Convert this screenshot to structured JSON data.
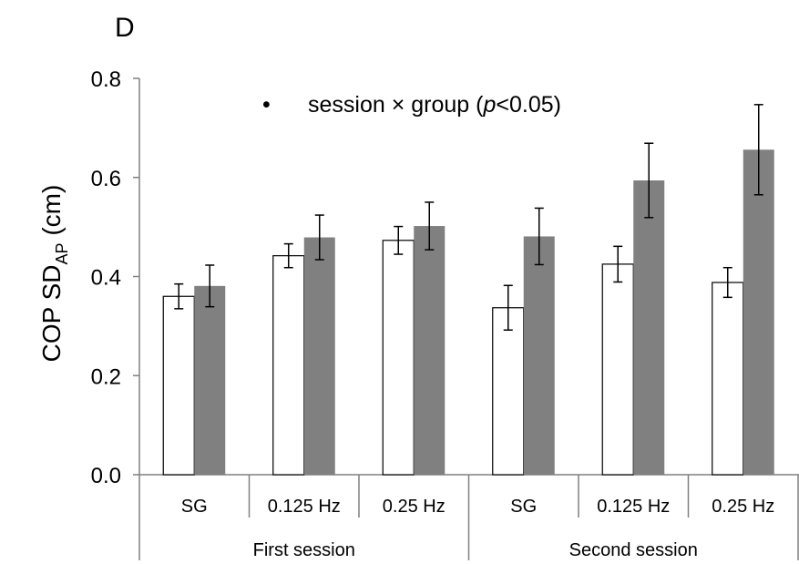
{
  "panel_label": "D",
  "legend": {
    "bullet": "•",
    "prefix": "session × group (",
    "p": "p",
    "suffix": "<0.05)"
  },
  "ylabel": {
    "main": "COP SD",
    "subscript": "AP",
    "unit": " (cm)"
  },
  "colors": {
    "open_bar_fill": "#ffffff",
    "filled_bar_fill": "#808080",
    "stroke": "#000000",
    "axis": "#808080"
  },
  "chart_data": {
    "type": "bar",
    "title": "",
    "ylim": [
      0,
      0.8
    ],
    "yticks": [
      "0.0",
      "0.2",
      "0.4",
      "0.6",
      "0.8"
    ],
    "ytick_values": [
      0,
      0.2,
      0.4,
      0.6,
      0.8
    ],
    "grid": false,
    "categories": [
      "SG",
      "0.125 Hz",
      "0.25 Hz",
      "SG",
      "0.125 Hz",
      "0.25 Hz"
    ],
    "groups": [
      {
        "label": "First session",
        "span": 3
      },
      {
        "label": "Second session",
        "span": 3
      }
    ],
    "series": [
      {
        "fill": "open",
        "values": [
          0.36,
          0.442,
          0.473,
          0.337,
          0.425,
          0.388
        ],
        "errors": [
          0.025,
          0.024,
          0.028,
          0.045,
          0.036,
          0.03
        ]
      },
      {
        "fill": "filled",
        "values": [
          0.381,
          0.479,
          0.502,
          0.481,
          0.594,
          0.656
        ],
        "errors": [
          0.042,
          0.045,
          0.048,
          0.057,
          0.075,
          0.091
        ]
      }
    ]
  }
}
